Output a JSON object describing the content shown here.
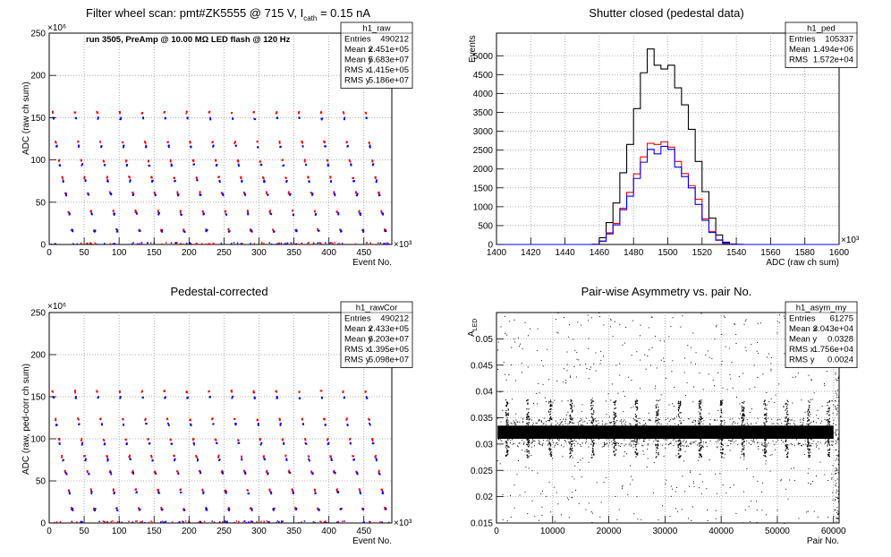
{
  "panels": {
    "raw": {
      "title_main": "Filter wheel scan: pmt#ZK5555 @   715 V, I",
      "title_sub": "cath",
      "title_tail": " = 0.15 nA",
      "annotation": "run 3505, PreAmp @ 10.00 MΩ LED flash @  120 Hz",
      "xlabel": "Event No.",
      "ylabel": "ADC (raw ch sum)",
      "x_exp": "×10³",
      "y_exp": "×10⁶",
      "stats": {
        "name": "h1_raw",
        "rows": [
          [
            "Entries",
            "490212"
          ],
          [
            "Mean x",
            "2.451e+05"
          ],
          [
            "Mean y",
            "5.683e+07"
          ],
          [
            "RMS x",
            "1.415e+05"
          ],
          [
            "RMS y",
            "5.186e+07"
          ]
        ]
      }
    },
    "ped": {
      "title": "Shutter closed (pedestal data)",
      "xlabel": "ADC (raw ch sum)",
      "ylabel": "Events",
      "x_exp": "×10³",
      "stats": {
        "name": "h1_ped",
        "rows": [
          [
            "Entries",
            "105337"
          ],
          [
            "Mean",
            "1.494e+06"
          ],
          [
            "RMS",
            "1.572e+04"
          ]
        ]
      }
    },
    "cor": {
      "title": "Pedestal-corrected",
      "xlabel": "Event No.",
      "ylabel": "ADC (raw, ped-corr ch sum)",
      "x_exp": "×10³",
      "y_exp": "×10⁶",
      "stats": {
        "name": "h1_rawCor",
        "rows": [
          [
            "Entries",
            "490212"
          ],
          [
            "Mean x",
            "2.433e+05"
          ],
          [
            "Mean y",
            "6.203e+07"
          ],
          [
            "RMS x",
            "1.395e+05"
          ],
          [
            "RMS y",
            "5.098e+07"
          ]
        ]
      }
    },
    "asym": {
      "title": "Pair-wise Asymmetry vs. pair No.",
      "xlabel": "Pair No.",
      "ylabel": "A",
      "ylabel_sub": "LED",
      "stats": {
        "name": "h1_asym_my",
        "rows": [
          [
            "Entries",
            "61275"
          ],
          [
            "Mean x",
            "3.043e+04"
          ],
          [
            "Mean y",
            "0.0328"
          ],
          [
            "RMS x",
            "1.756e+04"
          ],
          [
            "RMS y",
            "0.0024"
          ]
        ]
      }
    }
  },
  "colors": {
    "red": "#ff0000",
    "blue": "#0000ff",
    "black": "#000000",
    "grid": "#9a9a9a"
  },
  "chart_data": [
    {
      "id": "raw",
      "type": "scatter",
      "x_unit_scale": "1e3",
      "y_unit_scale": "1e6",
      "xlim": [
        0,
        490
      ],
      "ylim": [
        0,
        250
      ],
      "xticks": [
        0,
        50,
        100,
        150,
        200,
        250,
        300,
        350,
        400,
        450
      ],
      "yticks": [
        0,
        50,
        100,
        150,
        200,
        250
      ],
      "grid": true,
      "n_cycles": 15,
      "series": [
        {
          "color": "red",
          "levels": [
            157,
            122,
            100,
            80,
            62,
            40,
            18
          ]
        },
        {
          "color": "blue",
          "levels": [
            150,
            117,
            95,
            76,
            60,
            37,
            17
          ]
        }
      ],
      "baseline": 2
    },
    {
      "id": "ped",
      "type": "line",
      "step": true,
      "x_unit_scale": "1e3",
      "xlim": [
        1400,
        1600
      ],
      "ylim": [
        0,
        5600
      ],
      "xticks": [
        1400,
        1420,
        1440,
        1460,
        1480,
        1500,
        1520,
        1540,
        1560,
        1580,
        1600
      ],
      "yticks": [
        0,
        500,
        1000,
        1500,
        2000,
        2500,
        3000,
        3500,
        4000,
        4500,
        5000
      ],
      "grid": true,
      "x": [
        1456,
        1460,
        1464,
        1468,
        1472,
        1476,
        1480,
        1484,
        1488,
        1492,
        1496,
        1500,
        1504,
        1508,
        1512,
        1516,
        1520,
        1524,
        1528,
        1532,
        1536,
        1540
      ],
      "series": [
        {
          "color": "black",
          "values": [
            5,
            180,
            580,
            1100,
            1900,
            2650,
            3600,
            4550,
            5180,
            4750,
            4650,
            4750,
            4150,
            3700,
            3050,
            2200,
            1400,
            700,
            250,
            60,
            15,
            2
          ]
        },
        {
          "color": "red",
          "values": [
            3,
            80,
            310,
            560,
            960,
            1380,
            1870,
            2320,
            2680,
            2650,
            2720,
            2580,
            2200,
            1880,
            1560,
            1200,
            680,
            340,
            110,
            30,
            6,
            1
          ]
        },
        {
          "color": "blue",
          "values": [
            3,
            90,
            280,
            520,
            920,
            1280,
            1750,
            2180,
            2520,
            2400,
            2600,
            2520,
            2050,
            1800,
            1500,
            1060,
            640,
            320,
            120,
            30,
            6,
            1
          ]
        }
      ]
    },
    {
      "id": "cor",
      "type": "scatter",
      "x_unit_scale": "1e3",
      "y_unit_scale": "1e6",
      "xlim": [
        0,
        490
      ],
      "ylim": [
        0,
        250
      ],
      "xticks": [
        0,
        50,
        100,
        150,
        200,
        250,
        300,
        350,
        400,
        450
      ],
      "yticks": [
        0,
        50,
        100,
        150,
        200,
        250
      ],
      "grid": true,
      "n_cycles": 15,
      "series": [
        {
          "color": "red",
          "levels": [
            157,
            124,
            100,
            80,
            62,
            40,
            18
          ]
        },
        {
          "color": "blue",
          "levels": [
            150,
            118,
            95,
            76,
            60,
            37,
            17
          ]
        }
      ],
      "baseline": 2
    },
    {
      "id": "asym",
      "type": "scatter",
      "xlim": [
        0,
        61000
      ],
      "ylim": [
        0.015,
        0.055
      ],
      "xticks": [
        0,
        10000,
        20000,
        30000,
        40000,
        50000,
        60000
      ],
      "yticks": [
        0.015,
        0.02,
        0.025,
        0.03,
        0.035,
        0.04,
        0.045,
        0.05
      ],
      "grid": true,
      "band": [
        0.031,
        0.0335
      ],
      "spikes_x": [
        1800,
        5500,
        9500,
        13200,
        17000,
        21000,
        24800,
        28500,
        32500,
        36200,
        40000,
        43800,
        47800,
        51600,
        55500,
        59000
      ],
      "spike_range": [
        0.0275,
        0.0385
      ]
    }
  ]
}
